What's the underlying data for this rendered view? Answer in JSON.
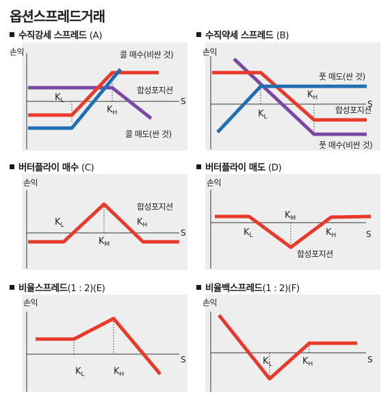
{
  "title": "옵션스프레드거래",
  "common": {
    "y_axis_label": "손익",
    "x_axis_label": "S"
  },
  "panels": {
    "A": {
      "title": "수직강세 스프레드",
      "suffix": "(A)",
      "k1": "K",
      "k1_sub": "L",
      "k2": "K",
      "k2_sub": "H",
      "label_buy": "콜 매수(비싼 것)",
      "label_combined": "합성포지션",
      "label_sell": "콜 매도(싼 것)"
    },
    "B": {
      "title": "수직약세 스프레드",
      "suffix": "(B)",
      "k1": "K",
      "k1_sub": "L",
      "k2": "K",
      "k2_sub": "H",
      "label_sell": "풋 매도(싼 것)",
      "label_combined": "합성포지션",
      "label_buy": "풋 매수(비싼 것)"
    },
    "C": {
      "title": "버터플라이 매수",
      "suffix": "(C)",
      "k1": "K",
      "k1_sub": "L",
      "k2": "K",
      "k2_sub": "M",
      "k3": "K",
      "k3_sub": "H",
      "label_combined": "합성포지션"
    },
    "D": {
      "title": "버터플라이 매도",
      "suffix": "(D)",
      "k1": "K",
      "k1_sub": "L",
      "k2": "K",
      "k2_sub": "M",
      "k3": "K",
      "k3_sub": "H",
      "label_combined": "합성포지션"
    },
    "E": {
      "title": "비율스프레드",
      "suffix": "(1 : 2)(E)",
      "k1": "K",
      "k1_sub": "L",
      "k2": "K",
      "k2_sub": "H"
    },
    "F": {
      "title": "비율백스프레드",
      "suffix": "(1 : 2)(F)",
      "k1": "K",
      "k1_sub": "L",
      "k2": "K",
      "k2_sub": "H"
    }
  },
  "colors": {
    "combined": "#e8392a",
    "long_option": "#1f6fb2",
    "short_option": "#7b48a6",
    "panel_background": "#eeeeee"
  }
}
